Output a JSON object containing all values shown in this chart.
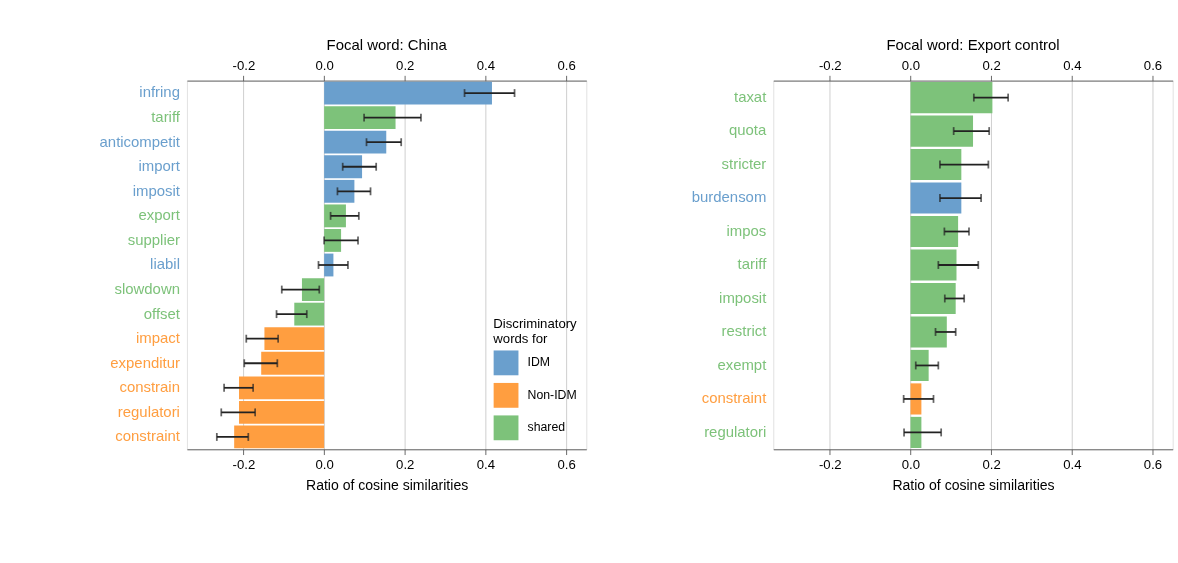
{
  "chart_data": [
    {
      "type": "bar",
      "orientation": "horizontal",
      "title": "Focal word: China",
      "xlabel": "Ratio of cosine similarities",
      "categories": [
        "infring",
        "tariff",
        "anticompetit",
        "import",
        "imposit",
        "export",
        "supplier",
        "liabil",
        "slowdown",
        "offset",
        "impact",
        "expenditur",
        "constrain",
        "regulatori",
        "constraint"
      ],
      "series": [
        {
          "name": "IDM",
          "color": "#6a9fcd",
          "values": [
            0.416,
            null,
            0.154,
            0.094,
            0.075,
            null,
            null,
            0.023,
            null,
            null,
            null,
            null,
            null,
            null,
            null
          ],
          "errors": [
            [
              0.348,
              0.472
            ],
            null,
            [
              0.105,
              0.191
            ],
            [
              0.046,
              0.129
            ],
            [
              0.033,
              0.115
            ],
            null,
            null,
            [
              -0.014,
              0.059
            ],
            null,
            null,
            null,
            null,
            null,
            null,
            null
          ]
        },
        {
          "name": "Non-IDM",
          "color": "#ff9e40",
          "values": [
            null,
            null,
            null,
            null,
            null,
            null,
            null,
            null,
            null,
            null,
            -0.148,
            -0.156,
            -0.211,
            -0.211,
            -0.223
          ],
          "errors": [
            null,
            null,
            null,
            null,
            null,
            null,
            null,
            null,
            null,
            null,
            [
              -0.193,
              -0.114
            ],
            [
              -0.198,
              -0.116
            ],
            [
              -0.248,
              -0.176
            ],
            [
              -0.255,
              -0.171
            ],
            [
              -0.266,
              -0.188
            ]
          ]
        },
        {
          "name": "shared",
          "color": "#7dc27a",
          "values": [
            null,
            0.177,
            null,
            null,
            null,
            0.054,
            0.042,
            null,
            -0.055,
            -0.074,
            null,
            null,
            null,
            null,
            null
          ],
          "errors": [
            null,
            [
              0.099,
              0.24
            ],
            null,
            null,
            null,
            [
              0.016,
              0.086
            ],
            [
              0.0,
              0.084
            ],
            null,
            [
              -0.105,
              -0.012
            ],
            [
              -0.118,
              -0.043
            ],
            null,
            null,
            null,
            null,
            null
          ]
        }
      ],
      "xlim": [
        -0.34,
        0.65
      ],
      "xticks": [
        -0.2,
        {
          "value": 0,
          "label": "0.0"
        },
        0.2,
        0.4,
        0.6
      ],
      "x2lim": [
        -0.34,
        0.65
      ],
      "x2ticks": [
        -0.2,
        {
          "value": 0,
          "label": "0.0"
        },
        0.2,
        0.4,
        0.6
      ],
      "grid": "x",
      "legend": "bottom right",
      "legend_title": "Discriminatory words for"
    },
    {
      "type": "bar",
      "orientation": "horizontal",
      "title": "Focal word: Export control",
      "xlabel": "Ratio of cosine similarities",
      "categories": [
        "taxat",
        "quota",
        "stricter",
        "burdensom",
        "impos",
        "tariff",
        "imposit",
        "restrict",
        "exempt",
        "constraint",
        "regulatori"
      ],
      "series": [
        {
          "color": "#6a9fcd",
          "values": [
            null,
            null,
            null,
            0.126,
            null,
            null,
            null,
            null,
            null,
            null,
            null
          ],
          "errors": [
            null,
            null,
            null,
            [
              0.073,
              0.175
            ],
            null,
            null,
            null,
            null,
            null,
            null,
            null
          ]
        },
        {
          "color": "#ff9e40",
          "values": [
            null,
            null,
            null,
            null,
            null,
            null,
            null,
            null,
            null,
            0.027,
            null
          ],
          "errors": [
            null,
            null,
            null,
            null,
            null,
            null,
            null,
            null,
            null,
            [
              -0.017,
              0.057
            ],
            null
          ]
        },
        {
          "color": "#7dc27a",
          "values": [
            0.203,
            0.155,
            0.126,
            null,
            0.118,
            0.114,
            0.112,
            0.09,
            0.045,
            null,
            0.027
          ],
          "errors": [
            [
              0.157,
              0.242
            ],
            [
              0.107,
              0.195
            ],
            [
              0.073,
              0.193
            ],
            null,
            [
              0.084,
              0.145
            ],
            [
              0.069,
              0.168
            ],
            [
              0.085,
              0.133
            ],
            [
              0.062,
              0.112
            ],
            [
              0.013,
              0.069
            ],
            null,
            [
              -0.016,
              0.076
            ]
          ]
        }
      ],
      "xlim": [
        -0.34,
        0.65
      ],
      "xticks": [
        -0.2,
        {
          "value": 0,
          "label": "0.0"
        },
        0.2,
        0.4,
        0.6
      ],
      "x2lim": [
        -0.34,
        0.65
      ],
      "x2ticks": [
        -0.2,
        {
          "value": 0,
          "label": "0.0"
        },
        0.2,
        0.4,
        0.6
      ],
      "grid": "x",
      "legend": false
    }
  ]
}
